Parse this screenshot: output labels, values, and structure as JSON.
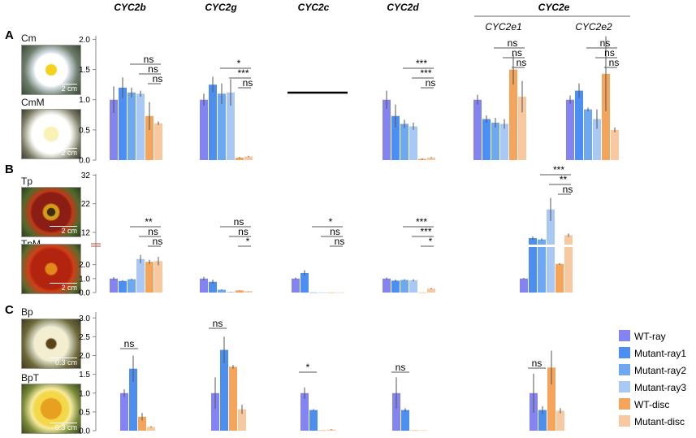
{
  "colors": {
    "WT-ray": "#8484f0",
    "Mutant-ray1": "#4d8ff0",
    "Mutant-ray2": "#6ea8f0",
    "Mutant-ray3": "#a9c8f3",
    "WT-disc": "#f5a45c",
    "Mutant-disc": "#f8c9a0"
  },
  "genes": [
    "CYC2b",
    "CYC2g",
    "CYC2c",
    "CYC2d",
    "CYC2e"
  ],
  "cyc2e_sub": [
    "CYC2e1",
    "CYC2e2"
  ],
  "legend": [
    "WT-ray",
    "Mutant-ray1",
    "Mutant-ray2",
    "Mutant-ray3",
    "WT-disc",
    "Mutant-disc"
  ],
  "panels": [
    {
      "letter": "A",
      "top_label": "Cm",
      "bottom_label": "CmM",
      "scale_top": "2 cm",
      "scale_bottom": "2 cm"
    },
    {
      "letter": "B",
      "top_label": "Tp",
      "bottom_label": "TpM",
      "scale_top": "2 cm",
      "scale_bottom": "2 cm"
    },
    {
      "letter": "C",
      "top_label": "Bp",
      "bottom_label": "BpT",
      "scale_top": "0.3 cm",
      "scale_bottom": "0.3 cm"
    }
  ],
  "chart_data": [
    {
      "type": "bar",
      "panel": "A",
      "ylim": [
        0,
        2.1
      ],
      "yticks": [
        "0.0",
        "0.5",
        "1.0",
        "1.5",
        "2.0"
      ],
      "groups": [
        {
          "gene": "CYC2b",
          "series": [
            "WT-ray",
            "Mutant-ray1",
            "Mutant-ray2",
            "Mutant-ray3",
            "WT-disc",
            "Mutant-disc"
          ],
          "values": [
            1.0,
            1.2,
            1.12,
            1.1,
            0.73,
            0.61
          ],
          "errors": [
            0.22,
            0.17,
            0.08,
            0.05,
            0.23,
            0.03
          ]
        },
        {
          "gene": "CYC2g",
          "series": [
            "WT-ray",
            "Mutant-ray1",
            "Mutant-ray2",
            "Mutant-ray3",
            "WT-disc",
            "Mutant-disc"
          ],
          "values": [
            1.0,
            1.25,
            1.1,
            1.12,
            0.04,
            0.06
          ],
          "errors": [
            0.1,
            0.13,
            0.17,
            0.22,
            0.01,
            0.01
          ]
        },
        {
          "gene": "CYC2c",
          "series": [],
          "values": [],
          "errors": []
        },
        {
          "gene": "CYC2d",
          "series": [
            "WT-ray",
            "Mutant-ray1",
            "Mutant-ray2",
            "Mutant-ray3",
            "WT-disc",
            "Mutant-disc"
          ],
          "values": [
            1.0,
            0.73,
            0.6,
            0.56,
            0.02,
            0.04
          ],
          "errors": [
            0.15,
            0.19,
            0.07,
            0.06,
            0.01,
            0.01
          ]
        },
        {
          "gene": "CYC2e1",
          "series": [
            "WT-ray",
            "Mutant-ray1",
            "Mutant-ray2",
            "Mutant-ray3",
            "WT-disc",
            "Mutant-disc"
          ],
          "values": [
            1.0,
            0.68,
            0.62,
            0.6,
            1.5,
            1.05
          ],
          "errors": [
            0.08,
            0.06,
            0.08,
            0.08,
            0.25,
            0.26
          ]
        },
        {
          "gene": "CYC2e2",
          "series": [
            "WT-ray",
            "Mutant-ray1",
            "Mutant-ray2",
            "Mutant-ray3",
            "WT-disc",
            "Mutant-disc"
          ],
          "values": [
            1.0,
            1.15,
            0.84,
            0.68,
            1.43,
            0.5
          ],
          "errors": [
            0.07,
            0.12,
            0.03,
            0.16,
            0.62,
            0.04
          ]
        }
      ],
      "annotations": [
        {
          "group": 0,
          "labels": [
            "ns",
            "ns",
            "ns"
          ]
        },
        {
          "group": 1,
          "labels": [
            "*",
            "***",
            "ns"
          ]
        },
        {
          "group": 3,
          "labels": [
            "***",
            "***",
            "ns"
          ]
        },
        {
          "group": 4,
          "labels": [
            "ns",
            "ns",
            "ns"
          ]
        },
        {
          "group": 5,
          "labels": [
            "ns",
            "ns",
            "ns"
          ]
        }
      ]
    },
    {
      "type": "bar",
      "panel": "B",
      "broken_axis": true,
      "lower_ylim": [
        0,
        3.2
      ],
      "lower_yticks": [
        "0.0",
        "1.0",
        "2.0"
      ],
      "upper_ylim": [
        8,
        33
      ],
      "upper_yticks": [
        "12",
        "22",
        "32"
      ],
      "groups": [
        {
          "gene": "CYC2b",
          "series": [
            "WT-ray",
            "Mutant-ray1",
            "Mutant-ray2",
            "Mutant-ray3",
            "WT-disc",
            "Mutant-disc"
          ],
          "values": [
            1.0,
            0.83,
            0.95,
            2.4,
            2.2,
            2.25
          ],
          "errors": [
            0.1,
            0.05,
            0.05,
            0.3,
            0.15,
            0.3
          ]
        },
        {
          "gene": "CYC2g",
          "series": [
            "WT-ray",
            "Mutant-ray1",
            "Mutant-ray2",
            "Mutant-ray3",
            "WT-disc",
            "Mutant-disc"
          ],
          "values": [
            1.0,
            0.77,
            0.2,
            0.05,
            0.15,
            0.1
          ],
          "errors": [
            0.12,
            0.15,
            0.03,
            0.01,
            0.02,
            0.01
          ]
        },
        {
          "gene": "CYC2c",
          "series": [
            "WT-ray",
            "Mutant-ray1",
            "Mutant-ray2",
            "Mutant-ray3",
            "WT-disc",
            "Mutant-disc"
          ],
          "values": [
            1.0,
            1.4,
            0.01,
            0.01,
            0.01,
            0.01
          ],
          "errors": [
            0.08,
            0.2,
            0,
            0,
            0,
            0
          ]
        },
        {
          "gene": "CYC2d",
          "series": [
            "WT-ray",
            "Mutant-ray1",
            "Mutant-ray2",
            "Mutant-ray3",
            "WT-disc",
            "Mutant-disc"
          ],
          "values": [
            1.0,
            0.85,
            0.9,
            0.88,
            0.01,
            0.28
          ],
          "errors": [
            0.08,
            0.08,
            0.05,
            0.07,
            0,
            0.05
          ]
        },
        {
          "gene": "CYC2e",
          "series": [
            "WT-ray",
            "Mutant-ray1",
            "Mutant-ray2",
            "Mutant-ray3",
            "WT-disc",
            "Mutant-disc"
          ],
          "values": [
            1.0,
            10.0,
            9.5,
            20.0,
            2.05,
            11.0
          ],
          "errors": [
            0.05,
            0.6,
            0.4,
            4.0,
            0.05,
            0.6
          ]
        }
      ],
      "annotations": [
        {
          "group": 0,
          "labels": [
            "**",
            "ns",
            "ns"
          ]
        },
        {
          "group": 1,
          "labels": [
            "ns",
            "ns",
            "*"
          ]
        },
        {
          "group": 2,
          "labels": [
            "*",
            "ns",
            "ns"
          ]
        },
        {
          "group": 3,
          "labels": [
            "***",
            "***",
            "*"
          ]
        },
        {
          "group": 4,
          "labels": [
            "***",
            "**",
            "ns"
          ]
        }
      ]
    },
    {
      "type": "bar",
      "panel": "C",
      "ylim": [
        0,
        3.2
      ],
      "yticks": [
        "0.0",
        "0.5",
        "1.0",
        "1.5",
        "2.0",
        "2.5",
        "3.0"
      ],
      "groups": [
        {
          "gene": "CYC2b",
          "series": [
            "WT-ray",
            "Mutant-ray1",
            "WT-disc",
            "Mutant-disc"
          ],
          "values": [
            1.0,
            1.65,
            0.37,
            0.1
          ],
          "errors": [
            0.1,
            0.35,
            0.1,
            0.02
          ]
        },
        {
          "gene": "CYC2g",
          "series": [
            "WT-ray",
            "Mutant-ray1",
            "WT-disc",
            "Mutant-disc"
          ],
          "values": [
            1.0,
            2.15,
            1.7,
            0.57
          ],
          "errors": [
            0.42,
            0.35,
            0.05,
            0.12
          ]
        },
        {
          "gene": "CYC2c",
          "series": [
            "WT-ray",
            "Mutant-ray1",
            "WT-disc",
            "Mutant-disc"
          ],
          "values": [
            1.0,
            0.55,
            0.01,
            0.03
          ],
          "errors": [
            0.15,
            0.02,
            0,
            0.01
          ]
        },
        {
          "gene": "CYC2d",
          "series": [
            "WT-ray",
            "Mutant-ray1",
            "WT-disc",
            "Mutant-disc"
          ],
          "values": [
            1.0,
            0.55,
            0.01,
            0.01
          ],
          "errors": [
            0.42,
            0.05,
            0,
            0
          ]
        },
        {
          "gene": "CYC2e",
          "series": [
            "WT-ray",
            "Mutant-ray1",
            "WT-disc",
            "Mutant-disc"
          ],
          "values": [
            1.0,
            0.55,
            1.68,
            0.53
          ],
          "errors": [
            0.52,
            0.1,
            0.45,
            0.07
          ]
        }
      ],
      "annotations": [
        {
          "group": 0,
          "labels": [
            "ns"
          ]
        },
        {
          "group": 1,
          "labels": [
            "ns"
          ]
        },
        {
          "group": 2,
          "labels": [
            "*"
          ]
        },
        {
          "group": 3,
          "labels": [
            "ns"
          ]
        },
        {
          "group": 4,
          "labels": [
            "ns"
          ]
        }
      ]
    }
  ]
}
